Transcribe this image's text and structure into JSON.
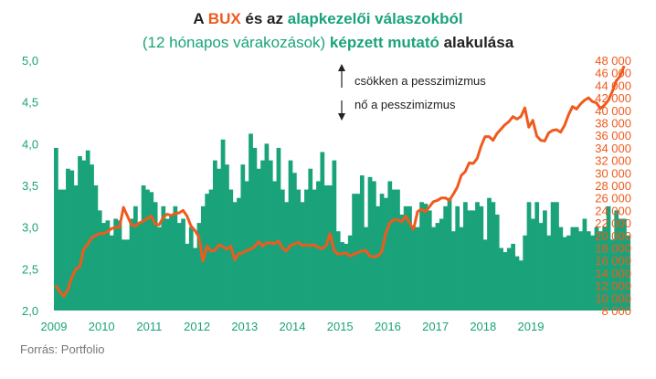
{
  "title": {
    "line1": [
      {
        "text": "A ",
        "color": "#222222",
        "bold": true
      },
      {
        "text": "BUX",
        "color": "#ef5a1d",
        "bold": true
      },
      {
        "text": " és az ",
        "color": "#222222",
        "bold": true
      },
      {
        "text": "alapkezelői válaszokból",
        "color": "#1aa37a",
        "bold": true
      }
    ],
    "line2": [
      {
        "text": "(12 hónapos várakozások) ",
        "color": "#1aa37a",
        "bold": false
      },
      {
        "text": "képzett mutató",
        "color": "#1aa37a",
        "bold": true
      },
      {
        "text": " alakulása",
        "color": "#222222",
        "bold": true
      }
    ]
  },
  "annotations": {
    "up": "csökken a pesszimizmus",
    "down": "nő a pesszimizmus"
  },
  "source": "Forrás: Portfolio",
  "colors": {
    "bars": "#1aa37a",
    "line": "#ef5a1d"
  },
  "chart_data": {
    "type": "bar+line",
    "x_start": 2009.0,
    "x_step": 0.08333,
    "xticks": [
      "2009",
      "2010",
      "2011",
      "2012",
      "2013",
      "2014",
      "2015",
      "2016",
      "2017",
      "2018",
      "2019"
    ],
    "left_axis": {
      "min": 2.0,
      "max": 5.0,
      "ticks": [
        "2,0",
        "2,5",
        "3,0",
        "3,5",
        "4,0",
        "4,5",
        "5,0"
      ]
    },
    "right_axis": {
      "min": 8000,
      "max": 48000,
      "ticks": [
        "8 000",
        "10 000",
        "12 000",
        "14 000",
        "16 000",
        "18 000",
        "20 000",
        "22 000",
        "24 000",
        "26 000",
        "28 000",
        "30 000",
        "32 000",
        "34 000",
        "36 000",
        "38 000",
        "40 000",
        "42 000",
        "44 000",
        "46 000",
        "48 000"
      ]
    },
    "series": [
      {
        "type": "bar",
        "axis": "left",
        "values": [
          3.95,
          3.45,
          3.45,
          3.7,
          3.68,
          3.5,
          3.85,
          3.8,
          3.92,
          3.75,
          3.5,
          3.2,
          3.05,
          3.08,
          2.9,
          3.1,
          3.08,
          2.85,
          2.85,
          3.1,
          3.25,
          3.05,
          3.5,
          3.45,
          3.42,
          3.3,
          3.0,
          3.25,
          3.1,
          3.15,
          3.25,
          3.05,
          3.1,
          2.8,
          3.0,
          2.75,
          3.05,
          3.25,
          3.4,
          3.45,
          3.8,
          3.7,
          4.05,
          3.75,
          3.45,
          3.3,
          3.35,
          3.75,
          3.55,
          4.12,
          3.95,
          3.7,
          3.8,
          4.0,
          3.8,
          3.55,
          3.95,
          3.45,
          3.3,
          3.8,
          3.65,
          3.45,
          3.3,
          3.45,
          3.7,
          3.45,
          3.55,
          3.9,
          3.5,
          3.5,
          3.8,
          2.95,
          2.82,
          2.8,
          2.9,
          3.4,
          3.4,
          3.62,
          3.0,
          3.6,
          3.55,
          3.25,
          3.4,
          3.35,
          3.55,
          3.45,
          3.45,
          3.15,
          3.25,
          3.25,
          3.0,
          3.0,
          3.3,
          3.28,
          3.2,
          3.0,
          3.05,
          3.1,
          3.25,
          3.35,
          2.95,
          3.25,
          3.0,
          3.3,
          3.2,
          3.2,
          3.3,
          3.25,
          2.85,
          3.35,
          3.3,
          3.15,
          2.75,
          2.7,
          2.75,
          2.8,
          2.65,
          2.6,
          2.9,
          3.3,
          3.1,
          3.3,
          3.05,
          3.2,
          2.9,
          3.3,
          3.3,
          3.0,
          2.88,
          2.9,
          3.0,
          3.0,
          2.95,
          3.1,
          2.95,
          2.9,
          3.0,
          2.95,
          3.0,
          3.25,
          2.85,
          3.2,
          3.1,
          3.1,
          2.9
        ]
      },
      {
        "type": "line",
        "axis": "right",
        "values": [
          12000,
          11000,
          10300,
          11300,
          13300,
          14600,
          15000,
          17800,
          18600,
          19600,
          20000,
          20300,
          20300,
          20600,
          21100,
          21300,
          21300,
          24500,
          23100,
          21700,
          21500,
          22000,
          22300,
          22700,
          23100,
          21800,
          21700,
          22900,
          23400,
          23200,
          23500,
          23600,
          24000,
          23100,
          21500,
          20800,
          19700,
          15900,
          18300,
          17500,
          17600,
          18500,
          18200,
          17800,
          18300,
          16100,
          17100,
          17200,
          17600,
          17800,
          18200,
          19000,
          18300,
          18800,
          18800,
          18700,
          19100,
          18000,
          17500,
          18400,
          18600,
          18900,
          18400,
          18500,
          18400,
          18500,
          18100,
          17900,
          18400,
          20300,
          17600,
          17000,
          17100,
          17200,
          16700,
          17000,
          17300,
          17500,
          17600,
          16700,
          16600,
          16700,
          17400,
          20300,
          22000,
          22500,
          22500,
          22200,
          23100,
          22000,
          21000,
          23800,
          24200,
          23800,
          24600,
          25400,
          25600,
          26000,
          26000,
          25600,
          26600,
          27700,
          29600,
          30200,
          31600,
          31500,
          32300,
          34300,
          35800,
          35800,
          35200,
          36300,
          37000,
          37700,
          38200,
          39000,
          38600,
          39000,
          40400,
          37300,
          38400,
          35900,
          35200,
          35100,
          36400,
          36800,
          36900,
          36500,
          37600,
          39300,
          40600,
          40200,
          41000,
          41600,
          42000,
          41400,
          41200,
          40300,
          40800,
          41600,
          43000,
          44700,
          45500,
          47100
        ]
      }
    ]
  }
}
